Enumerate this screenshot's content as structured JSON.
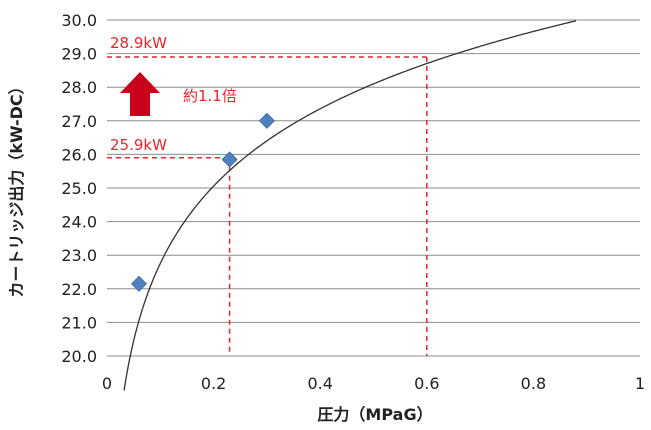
{
  "chart_data": {
    "type": "scatter",
    "title": "",
    "xlabel": "圧力（MPaG）",
    "ylabel": "カートリッジ出力（kW-DC）",
    "xlim": [
      0,
      1
    ],
    "ylim": [
      20.0,
      30.0
    ],
    "x_ticks": [
      0,
      0.2,
      0.4,
      0.6,
      0.8,
      1
    ],
    "x_tick_labels": [
      "0",
      "0.2",
      "0.4",
      "0.6",
      "0.8",
      "1"
    ],
    "y_ticks": [
      20,
      21,
      22,
      23,
      24,
      25,
      26,
      27,
      28,
      29,
      30
    ],
    "y_tick_labels": [
      "20.0",
      "21.0",
      "22.0",
      "23.0",
      "24.0",
      "25.0",
      "26.0",
      "27.0",
      "28.0",
      "29.0",
      "30.0"
    ],
    "grid": "horizontal",
    "legend": "none",
    "series": [
      {
        "marker": "diamond",
        "color": "#4f81bd",
        "points": [
          {
            "x": 0.06,
            "y": 22.15
          },
          {
            "x": 0.23,
            "y": 25.85
          },
          {
            "x": 0.3,
            "y": 27.0
          }
        ]
      }
    ],
    "trendline": {
      "type": "logarithmic",
      "color": "#333333",
      "a": 3.32,
      "b": 30.4,
      "x_from": 0.032,
      "x_to": 0.88
    },
    "reference_lines": [
      {
        "x": 0.23,
        "y": 25.9,
        "color": "#e8262d"
      },
      {
        "x": 0.6,
        "y": 28.9,
        "color": "#e8262d"
      }
    ],
    "annotations": {
      "low_label": "25.9kW",
      "high_label": "28.9kW",
      "ratio_label": "約1.1倍",
      "color": "#e8262d",
      "arrow_color": "#c8001a"
    }
  }
}
